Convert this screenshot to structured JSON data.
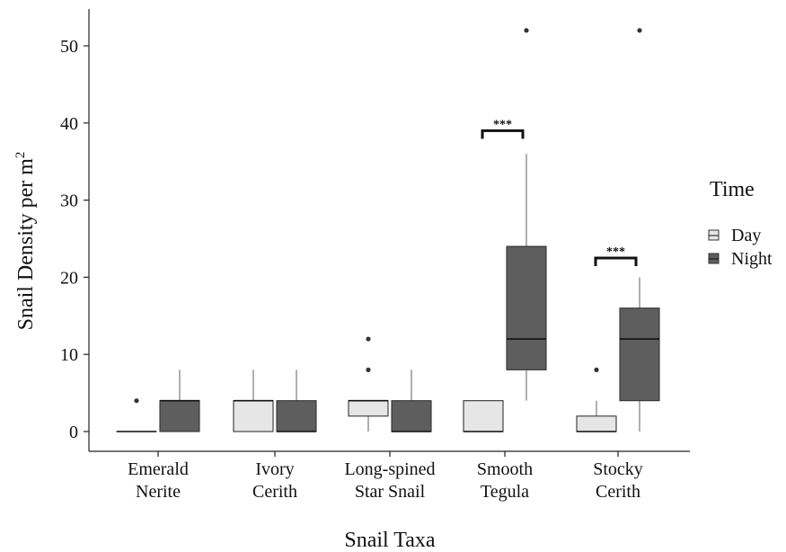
{
  "chart_data": {
    "type": "box",
    "title": "",
    "xlabel": "Snail Taxa",
    "ylabel": "Snail Density per m",
    "ylabel_superscript": "2",
    "ylim": [
      -2,
      55
    ],
    "yticks": [
      0,
      10,
      20,
      30,
      40,
      50
    ],
    "categories": [
      [
        "Emerald",
        "Nerite"
      ],
      [
        "Ivory",
        "Cerith"
      ],
      [
        "Long-spined",
        "Star Snail"
      ],
      [
        "Smooth",
        "Tegula"
      ],
      [
        "Stocky",
        "Cerith"
      ]
    ],
    "legend": {
      "title": "Time",
      "position": "right",
      "entries": [
        {
          "name": "Day",
          "color": "#e6e6e6"
        },
        {
          "name": "Night",
          "color": "#5e5e5e"
        }
      ]
    },
    "series": [
      {
        "name": "Day",
        "color": "#e6e6e6",
        "boxes": [
          {
            "q1": 0,
            "median": 0,
            "q3": 0,
            "whisker_low": 0,
            "whisker_high": 0,
            "outliers": [
              4
            ]
          },
          {
            "q1": 0,
            "median": 4,
            "q3": 4,
            "whisker_low": 0,
            "whisker_high": 8,
            "outliers": []
          },
          {
            "q1": 2,
            "median": 4,
            "q3": 4,
            "whisker_low": 0,
            "whisker_high": 4,
            "outliers": [
              8,
              12
            ]
          },
          {
            "q1": 0,
            "median": 0,
            "q3": 4,
            "whisker_low": 0,
            "whisker_high": 4,
            "outliers": []
          },
          {
            "q1": 0,
            "median": 0,
            "q3": 2,
            "whisker_low": 0,
            "whisker_high": 4,
            "outliers": [
              8
            ]
          }
        ]
      },
      {
        "name": "Night",
        "color": "#5e5e5e",
        "boxes": [
          {
            "q1": 0,
            "median": 4,
            "q3": 4,
            "whisker_low": 0,
            "whisker_high": 8,
            "outliers": []
          },
          {
            "q1": 0,
            "median": 0,
            "q3": 4,
            "whisker_low": 0,
            "whisker_high": 8,
            "outliers": []
          },
          {
            "q1": 0,
            "median": 0,
            "q3": 4,
            "whisker_low": 0,
            "whisker_high": 8,
            "outliers": []
          },
          {
            "q1": 8,
            "median": 12,
            "q3": 24,
            "whisker_low": 4,
            "whisker_high": 36,
            "outliers": [
              52
            ]
          },
          {
            "q1": 4,
            "median": 12,
            "q3": 16,
            "whisker_low": 0,
            "whisker_high": 20,
            "outliers": [
              52
            ]
          }
        ]
      }
    ],
    "significance": [
      {
        "category_index": 3,
        "label": "***",
        "y": 39
      },
      {
        "category_index": 4,
        "label": "***",
        "y": 22.5
      }
    ],
    "grid": false
  }
}
